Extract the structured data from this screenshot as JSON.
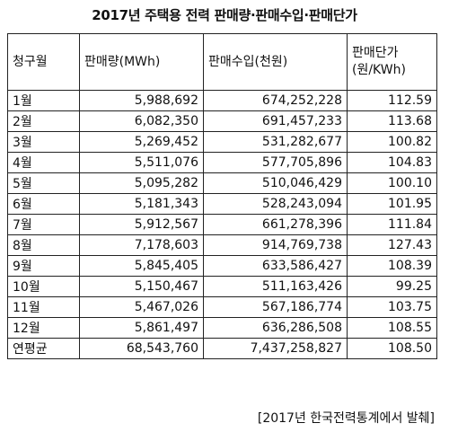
{
  "title": "2017년 주택용 전력 판매량·판매수입·판매단가",
  "table": {
    "headers": [
      "청구월",
      "판매량(MWh)",
      "판매수입(천원)",
      "판매단가\n(원/KWh)"
    ],
    "header_price_line1": "판매단가",
    "header_price_line2": "(원/KWh)",
    "rows": [
      {
        "month": "1월",
        "volume": "5,988,692",
        "revenue": "674,252,228",
        "price": "112.59"
      },
      {
        "month": "2월",
        "volume": "6,082,350",
        "revenue": "691,457,233",
        "price": "113.68"
      },
      {
        "month": "3월",
        "volume": "5,269,452",
        "revenue": "531,282,677",
        "price": "100.82"
      },
      {
        "month": "4월",
        "volume": "5,511,076",
        "revenue": "577,705,896",
        "price": "104.83"
      },
      {
        "month": "5월",
        "volume": "5,095,282",
        "revenue": "510,046,429",
        "price": "100.10"
      },
      {
        "month": "6월",
        "volume": "5,181,343",
        "revenue": "528,243,094",
        "price": "101.95"
      },
      {
        "month": "7월",
        "volume": "5,912,567",
        "revenue": "661,278,396",
        "price": "111.84"
      },
      {
        "month": "8월",
        "volume": "7,178,603",
        "revenue": "914,769,738",
        "price": "127.43"
      },
      {
        "month": "9월",
        "volume": "5,845,405",
        "revenue": "633,586,427",
        "price": "108.39"
      },
      {
        "month": "10월",
        "volume": "5,150,467",
        "revenue": "511,163,426",
        "price": "99.25"
      },
      {
        "month": "11월",
        "volume": "5,467,026",
        "revenue": "567,186,774",
        "price": "103.75"
      },
      {
        "month": "12월",
        "volume": "5,861,497",
        "revenue": "636,286,508",
        "price": "108.55"
      },
      {
        "month": "연평균",
        "volume": "68,543,760",
        "revenue": "7,437,258,827",
        "price": "108.50"
      }
    ]
  },
  "source": "[2017년 한국전력통계에서 발췌]"
}
